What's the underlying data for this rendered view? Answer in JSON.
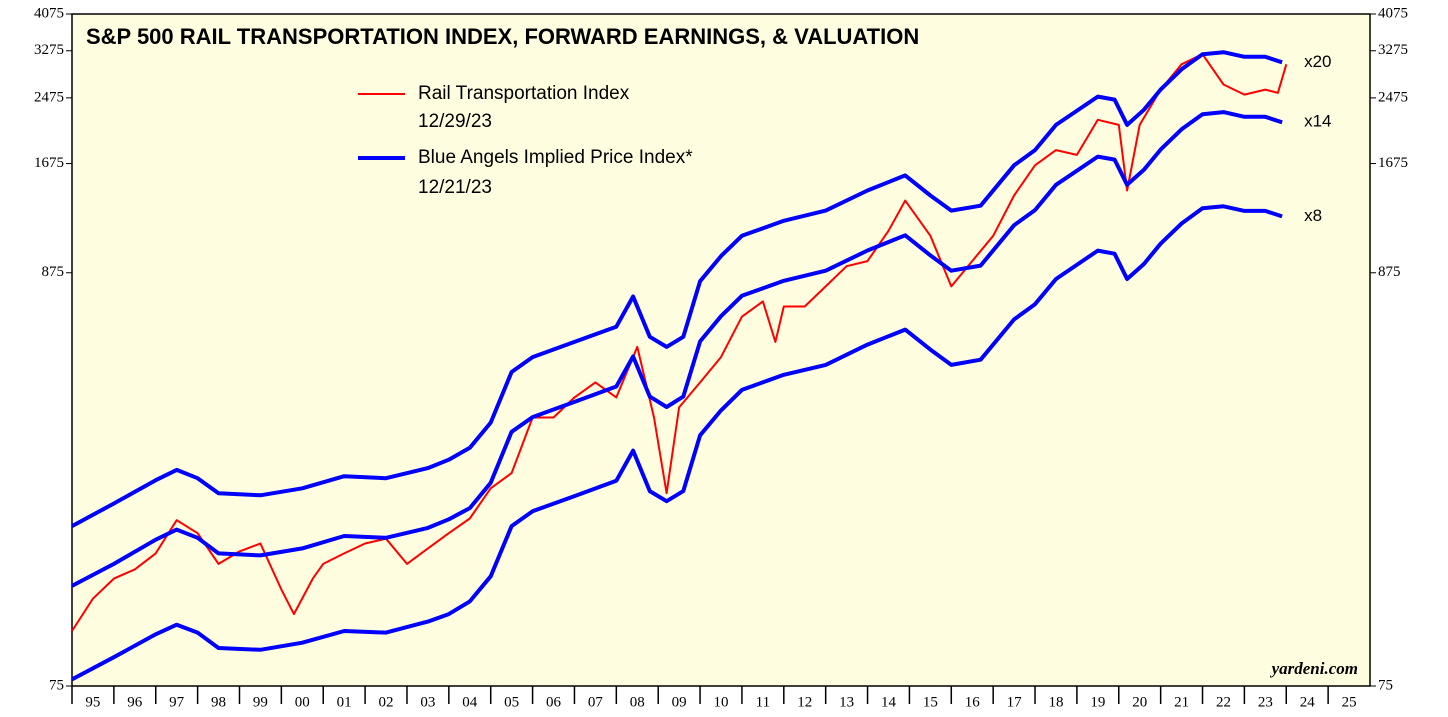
{
  "chart_data": {
    "type": "line",
    "title": "S&P 500 RAIL TRANSPORTATION INDEX, FORWARD EARNINGS, & VALUATION",
    "source": "yardeni.com",
    "log": true,
    "background": "#fffde0",
    "ylim": [
      75,
      4075
    ],
    "yticks": [
      75,
      875,
      1675,
      2475,
      3275,
      4075
    ],
    "xlim": [
      1995,
      2026
    ],
    "xticks": [
      {
        "value": 1995,
        "label": "95"
      },
      {
        "value": 1996,
        "label": "96"
      },
      {
        "value": 1997,
        "label": "97"
      },
      {
        "value": 1998,
        "label": "98"
      },
      {
        "value": 1999,
        "label": "99"
      },
      {
        "value": 2000,
        "label": "00"
      },
      {
        "value": 2001,
        "label": "01"
      },
      {
        "value": 2002,
        "label": "02"
      },
      {
        "value": 2003,
        "label": "03"
      },
      {
        "value": 2004,
        "label": "04"
      },
      {
        "value": 2005,
        "label": "05"
      },
      {
        "value": 2006,
        "label": "06"
      },
      {
        "value": 2007,
        "label": "07"
      },
      {
        "value": 2008,
        "label": "08"
      },
      {
        "value": 2009,
        "label": "09"
      },
      {
        "value": 2010,
        "label": "10"
      },
      {
        "value": 2011,
        "label": "11"
      },
      {
        "value": 2012,
        "label": "12"
      },
      {
        "value": 2013,
        "label": "13"
      },
      {
        "value": 2014,
        "label": "14"
      },
      {
        "value": 2015,
        "label": "15"
      },
      {
        "value": 2016,
        "label": "16"
      },
      {
        "value": 2017,
        "label": "17"
      },
      {
        "value": 2018,
        "label": "18"
      },
      {
        "value": 2019,
        "label": "19"
      },
      {
        "value": 2020,
        "label": "20"
      },
      {
        "value": 2021,
        "label": "21"
      },
      {
        "value": 2022,
        "label": "22"
      },
      {
        "value": 2023,
        "label": "23"
      },
      {
        "value": 2024,
        "label": "24"
      },
      {
        "value": 2025,
        "label": "25"
      }
    ],
    "legend": [
      {
        "series": 0,
        "date": "12/29/23"
      },
      {
        "label": "Blue Angels Implied Price Index*",
        "date": "12/21/23",
        "color": "#0000ff"
      }
    ],
    "series": [
      {
        "name": "Rail Transportation Index",
        "color": "#ff0000",
        "x": [
          1995.0,
          1995.5,
          1996.0,
          1996.5,
          1997.0,
          1997.5,
          1998.0,
          1998.5,
          1999.0,
          1999.5,
          2000.0,
          2000.3,
          2000.75,
          2001.0,
          2001.5,
          2002.0,
          2002.5,
          2003.0,
          2003.5,
          2004.0,
          2004.5,
          2005.0,
          2005.5,
          2006.0,
          2006.5,
          2007.0,
          2007.5,
          2008.0,
          2008.5,
          2008.9,
          2009.2,
          2009.5,
          2010.0,
          2010.5,
          2011.0,
          2011.5,
          2011.8,
          2012.0,
          2012.5,
          2013.0,
          2013.5,
          2014.0,
          2014.5,
          2014.9,
          2015.5,
          2016.0,
          2016.5,
          2017.0,
          2017.5,
          2018.0,
          2018.5,
          2019.0,
          2019.5,
          2020.0,
          2020.2,
          2020.5,
          2021.0,
          2021.5,
          2022.0,
          2022.5,
          2023.0,
          2023.5,
          2023.8,
          2024.0
        ],
        "values": [
          104,
          126,
          142,
          150,
          165,
          201,
          186,
          155,
          167,
          175,
          133,
          115,
          142,
          155,
          165,
          175,
          180,
          155,
          170,
          186,
          203,
          243,
          266,
          370,
          370,
          417,
          456,
          417,
          563,
          370,
          236,
          393,
          456,
          530,
          674,
          738,
          580,
          716,
          716,
          807,
          910,
          938,
          1123,
          1344,
          1090,
          807,
          938,
          1090,
          1385,
          1658,
          1814,
          1763,
          2172,
          2108,
          1427,
          2108,
          2600,
          3022,
          3209,
          2679,
          2524,
          2600,
          2550,
          3022
        ]
      },
      {
        "name": "x20",
        "color": "#0000ff",
        "x": [
          1995.0,
          1996.0,
          1997.0,
          1997.5,
          1998.0,
          1998.5,
          1999.5,
          2000.5,
          2001.5,
          2002.5,
          2003.5,
          2004.0,
          2004.5,
          2005.0,
          2005.5,
          2006.0,
          2007.0,
          2008.0,
          2008.4,
          2008.8,
          2009.2,
          2009.6,
          2010.0,
          2010.5,
          2011.0,
          2012.0,
          2013.0,
          2014.0,
          2014.9,
          2015.5,
          2016.0,
          2016.7,
          2017.5,
          2018.0,
          2018.5,
          2019.5,
          2019.9,
          2020.2,
          2020.6,
          2021.0,
          2021.5,
          2022.0,
          2022.5,
          2023.0,
          2023.5,
          2023.9
        ],
        "values": [
          194,
          222,
          255,
          271,
          258,
          236,
          233,
          243,
          261,
          258,
          274,
          288,
          309,
          359,
          485,
          530,
          580,
          635,
          760,
          598,
          563,
          598,
          832,
          966,
          1090,
          1192,
          1266,
          1427,
          1561,
          1385,
          1266,
          1304,
          1658,
          1814,
          2108,
          2494,
          2450,
          2108,
          2306,
          2600,
          2933,
          3209,
          3248,
          3160,
          3160,
          3058
        ]
      },
      {
        "name": "x14",
        "color": "#0000ff",
        "x": [
          1995.0,
          1996.0,
          1997.0,
          1997.5,
          1998.0,
          1998.5,
          1999.5,
          2000.5,
          2001.5,
          2002.5,
          2003.5,
          2004.0,
          2004.5,
          2005.0,
          2005.5,
          2006.0,
          2007.0,
          2008.0,
          2008.4,
          2008.8,
          2009.2,
          2009.6,
          2010.0,
          2010.5,
          2011.0,
          2012.0,
          2013.0,
          2014.0,
          2014.9,
          2015.5,
          2016.0,
          2016.7,
          2017.5,
          2018.0,
          2018.5,
          2019.5,
          2019.9,
          2020.2,
          2020.6,
          2021.0,
          2021.5,
          2022.0,
          2022.5,
          2023.0,
          2023.5,
          2023.9
        ],
        "values": [
          136,
          155,
          179,
          190,
          181,
          165,
          163,
          170,
          183,
          181,
          192,
          202,
          216,
          251,
          340,
          371,
          406,
          445,
          532,
          419,
          394,
          419,
          582,
          676,
          763,
          834,
          886,
          999,
          1093,
          970,
          886,
          913,
          1161,
          1270,
          1476,
          1746,
          1715,
          1476,
          1614,
          1820,
          2053,
          2246,
          2274,
          2212,
          2212,
          2141
        ]
      },
      {
        "name": "x8",
        "color": "#0000ff",
        "x": [
          1995.0,
          1996.0,
          1997.0,
          1997.5,
          1998.0,
          1998.5,
          1999.5,
          2000.5,
          2001.5,
          2002.5,
          2003.5,
          2004.0,
          2004.5,
          2005.0,
          2005.5,
          2006.0,
          2007.0,
          2008.0,
          2008.4,
          2008.8,
          2009.2,
          2009.6,
          2010.0,
          2010.5,
          2011.0,
          2012.0,
          2013.0,
          2014.0,
          2014.9,
          2015.5,
          2016.0,
          2016.7,
          2017.5,
          2018.0,
          2018.5,
          2019.5,
          2019.9,
          2020.2,
          2020.6,
          2021.0,
          2021.5,
          2022.0,
          2022.5,
          2023.0,
          2023.5,
          2023.9
        ],
        "values": [
          78,
          89,
          102,
          108,
          103,
          94,
          93,
          97,
          104,
          103,
          110,
          115,
          124,
          144,
          194,
          212,
          232,
          254,
          304,
          239,
          225,
          239,
          333,
          386,
          436,
          477,
          506,
          571,
          624,
          554,
          506,
          522,
          663,
          726,
          843,
          998,
          980,
          843,
          922,
          1040,
          1173,
          1284,
          1299,
          1264,
          1264,
          1223
        ]
      }
    ]
  }
}
